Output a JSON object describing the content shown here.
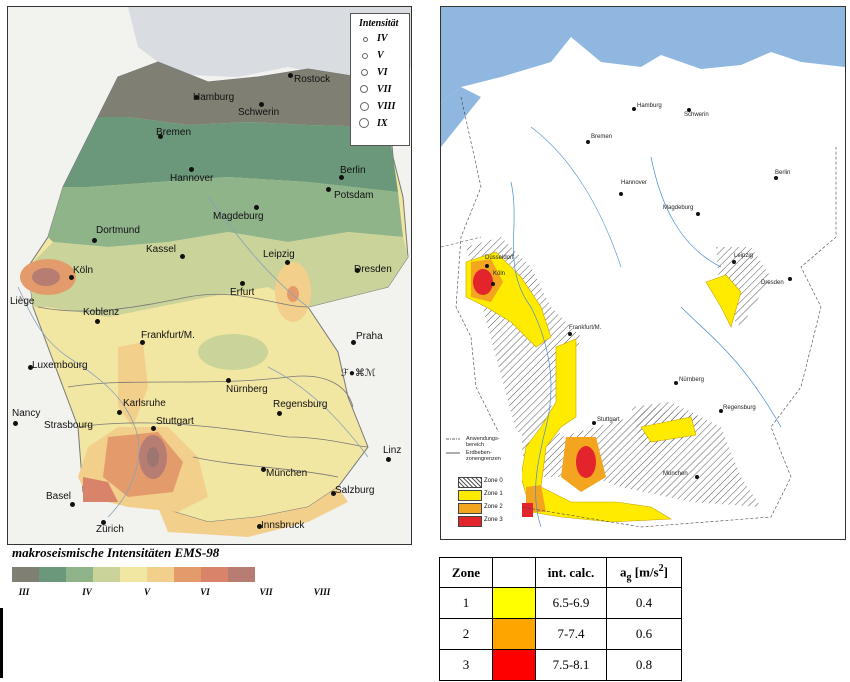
{
  "left_map": {
    "legend": {
      "title": "Intensität",
      "items": [
        "IV",
        "V",
        "VI",
        "VII",
        "VIII",
        "IX"
      ]
    },
    "cities": [
      {
        "name": "Rostock"
      },
      {
        "name": "Hamburg"
      },
      {
        "name": "Schwerin"
      },
      {
        "name": "Bremen"
      },
      {
        "name": "Hannover"
      },
      {
        "name": "Berlin"
      },
      {
        "name": "Potsdam"
      },
      {
        "name": "Magdeburg"
      },
      {
        "name": "Dortmund"
      },
      {
        "name": "Kassel"
      },
      {
        "name": "Leipzig"
      },
      {
        "name": "Dresden"
      },
      {
        "name": "Köln"
      },
      {
        "name": "Liège"
      },
      {
        "name": "Erfurt"
      },
      {
        "name": "Koblenz"
      },
      {
        "name": "Frankfurt/M."
      },
      {
        "name": "Praha"
      },
      {
        "name": "Luxembourg"
      },
      {
        "name": "Nürnberg"
      },
      {
        "name": "Karlsruhe"
      },
      {
        "name": "Regensburg"
      },
      {
        "name": "Nancy"
      },
      {
        "name": "Strasbourg"
      },
      {
        "name": "Stuttgart"
      },
      {
        "name": "Linz"
      },
      {
        "name": "München"
      },
      {
        "name": "Basel"
      },
      {
        "name": "Salzburg"
      },
      {
        "name": "Zürich"
      },
      {
        "name": "Innsbruck"
      }
    ],
    "symbols_text": "ℱ●⌘ℳ"
  },
  "scale": {
    "title": "makroseismische Intensitäten  EMS-98",
    "colors": [
      "#7f7f73",
      "#6b977a",
      "#8fb48a",
      "#c9d39a",
      "#f2e6a3",
      "#f3cf8c",
      "#e49b6c",
      "#d9836a",
      "#b77d72"
    ],
    "ticks": [
      "III",
      "IV",
      "V",
      "VI",
      "VII",
      "VIII"
    ]
  },
  "right_map": {
    "cities": [
      {
        "name": "Hamburg"
      },
      {
        "name": "Schwerin"
      },
      {
        "name": "Bremen"
      },
      {
        "name": "Berlin"
      },
      {
        "name": "Hannover"
      },
      {
        "name": "Magdeburg"
      },
      {
        "name": "Düsseldorf"
      },
      {
        "name": "Leipzig"
      },
      {
        "name": "Dresden"
      },
      {
        "name": "Köln"
      },
      {
        "name": "Frankfurt/M."
      },
      {
        "name": "Nürnberg"
      },
      {
        "name": "Regensburg"
      },
      {
        "name": "Stuttgart"
      },
      {
        "name": "München"
      }
    ],
    "legend": {
      "line1": "Anwendungs-",
      "line2": "bereich",
      "line3": "Erdbeben-",
      "line4": "zonengrenzen",
      "zones": [
        {
          "label": "Zone 0",
          "color": "hatched"
        },
        {
          "label": "Zone 1",
          "color": "#ffeb00"
        },
        {
          "label": "Zone 2",
          "color": "#f4a520"
        },
        {
          "label": "Zone 3",
          "color": "#e4242b"
        }
      ]
    }
  },
  "zone_table": {
    "headers": [
      "Zone",
      "",
      "int. calc.",
      "a",
      "g",
      "[m/s",
      "2",
      "]"
    ],
    "rows": [
      {
        "zone": "1",
        "color": "#ffff00",
        "int": "6.5-6.9",
        "ag": "0.4"
      },
      {
        "zone": "2",
        "color": "#ffa500",
        "int": "7-7.4",
        "ag": "0.6"
      },
      {
        "zone": "3",
        "color": "#ff0000",
        "int": "7.5-8.1",
        "ag": "0.8"
      }
    ]
  }
}
